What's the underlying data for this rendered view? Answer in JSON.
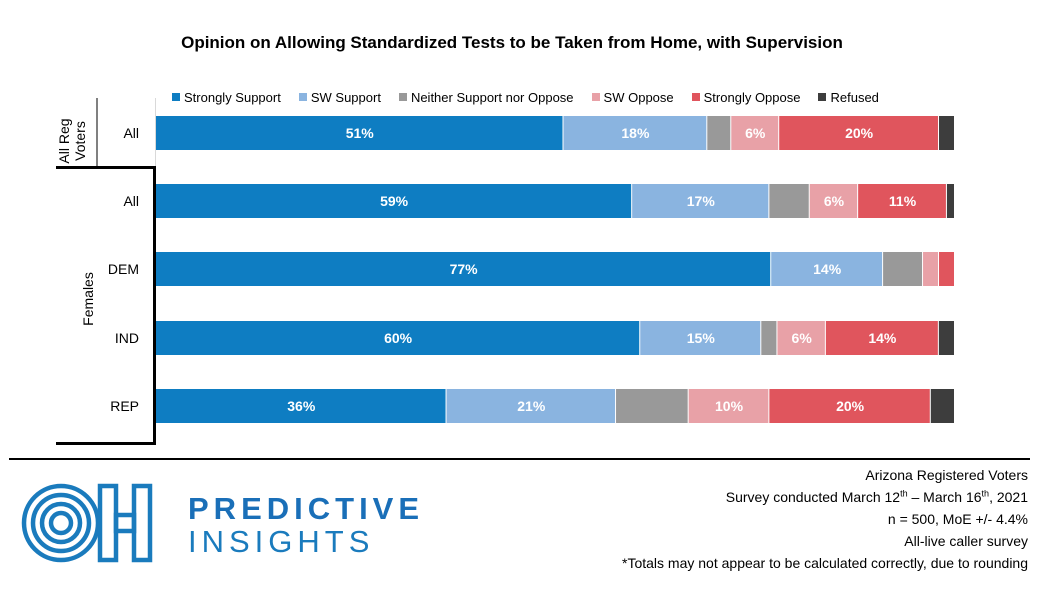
{
  "title": "Opinion on Allowing Standardized Tests to be Taken from Home, with Supervision",
  "chart_data": {
    "type": "bar",
    "orientation": "horizontal",
    "stacked": true,
    "normalized_percent": true,
    "title": "Opinion on Allowing Standardized Tests to be Taken from Home, with Supervision",
    "legend_position": "top",
    "categories": [
      "All",
      "All",
      "DEM",
      "IND",
      "REP"
    ],
    "groups": [
      {
        "label": "All Reg Voters",
        "categories": [
          "All"
        ]
      },
      {
        "label": "Females",
        "categories": [
          "All",
          "DEM",
          "IND",
          "REP"
        ]
      }
    ],
    "series": [
      {
        "name": "Strongly Support",
        "color": "#0e7dc2",
        "values": [
          51,
          59,
          77,
          60,
          36
        ],
        "labels": [
          "51%",
          "59%",
          "77%",
          "60%",
          "36%"
        ]
      },
      {
        "name": "SW Support",
        "color": "#8ab4e0",
        "values": [
          18,
          17,
          14,
          15,
          21
        ],
        "labels": [
          "18%",
          "17%",
          "14%",
          "15%",
          "21%"
        ]
      },
      {
        "name": "Neither Support nor Oppose",
        "color": "#999999",
        "values": [
          3,
          5,
          5,
          2,
          9
        ],
        "labels": [
          "",
          "",
          "",
          "",
          ""
        ]
      },
      {
        "name": "SW Oppose",
        "color": "#e8a1a7",
        "values": [
          6,
          6,
          2,
          6,
          10
        ],
        "labels": [
          "6%",
          "6%",
          "",
          "6%",
          "10%"
        ]
      },
      {
        "name": "Strongly Oppose",
        "color": "#e0555d",
        "values": [
          20,
          11,
          2,
          14,
          20
        ],
        "labels": [
          "20%",
          "11%",
          "",
          "14%",
          "20%"
        ]
      },
      {
        "name": "Refused",
        "color": "#3d3d3d",
        "values": [
          2,
          1,
          0,
          2,
          3
        ],
        "labels": [
          "",
          "",
          "",
          "",
          ""
        ]
      }
    ]
  },
  "group_labels": {
    "all_reg": "All Reg Voters",
    "all_reg_line1": "All Reg",
    "all_reg_line2": "Voters",
    "females": "Females"
  },
  "brand": {
    "line1": "PREDICTIVE",
    "line2": "INSIGHTS",
    "logo_letters": "OH",
    "color": "#1a7bbd"
  },
  "footnotes": {
    "line1": "Arizona Registered Voters",
    "line2_a": "Survey conducted March 12",
    "line2_sup1": "th",
    "line2_b": " – March 16",
    "line2_sup2": "th",
    "line2_c": ", 2021",
    "line3": "n = 500, MoE +/- 4.4%",
    "line4": "All-live caller survey",
    "line5": "*Totals may not appear to be calculated correctly, due to rounding"
  }
}
